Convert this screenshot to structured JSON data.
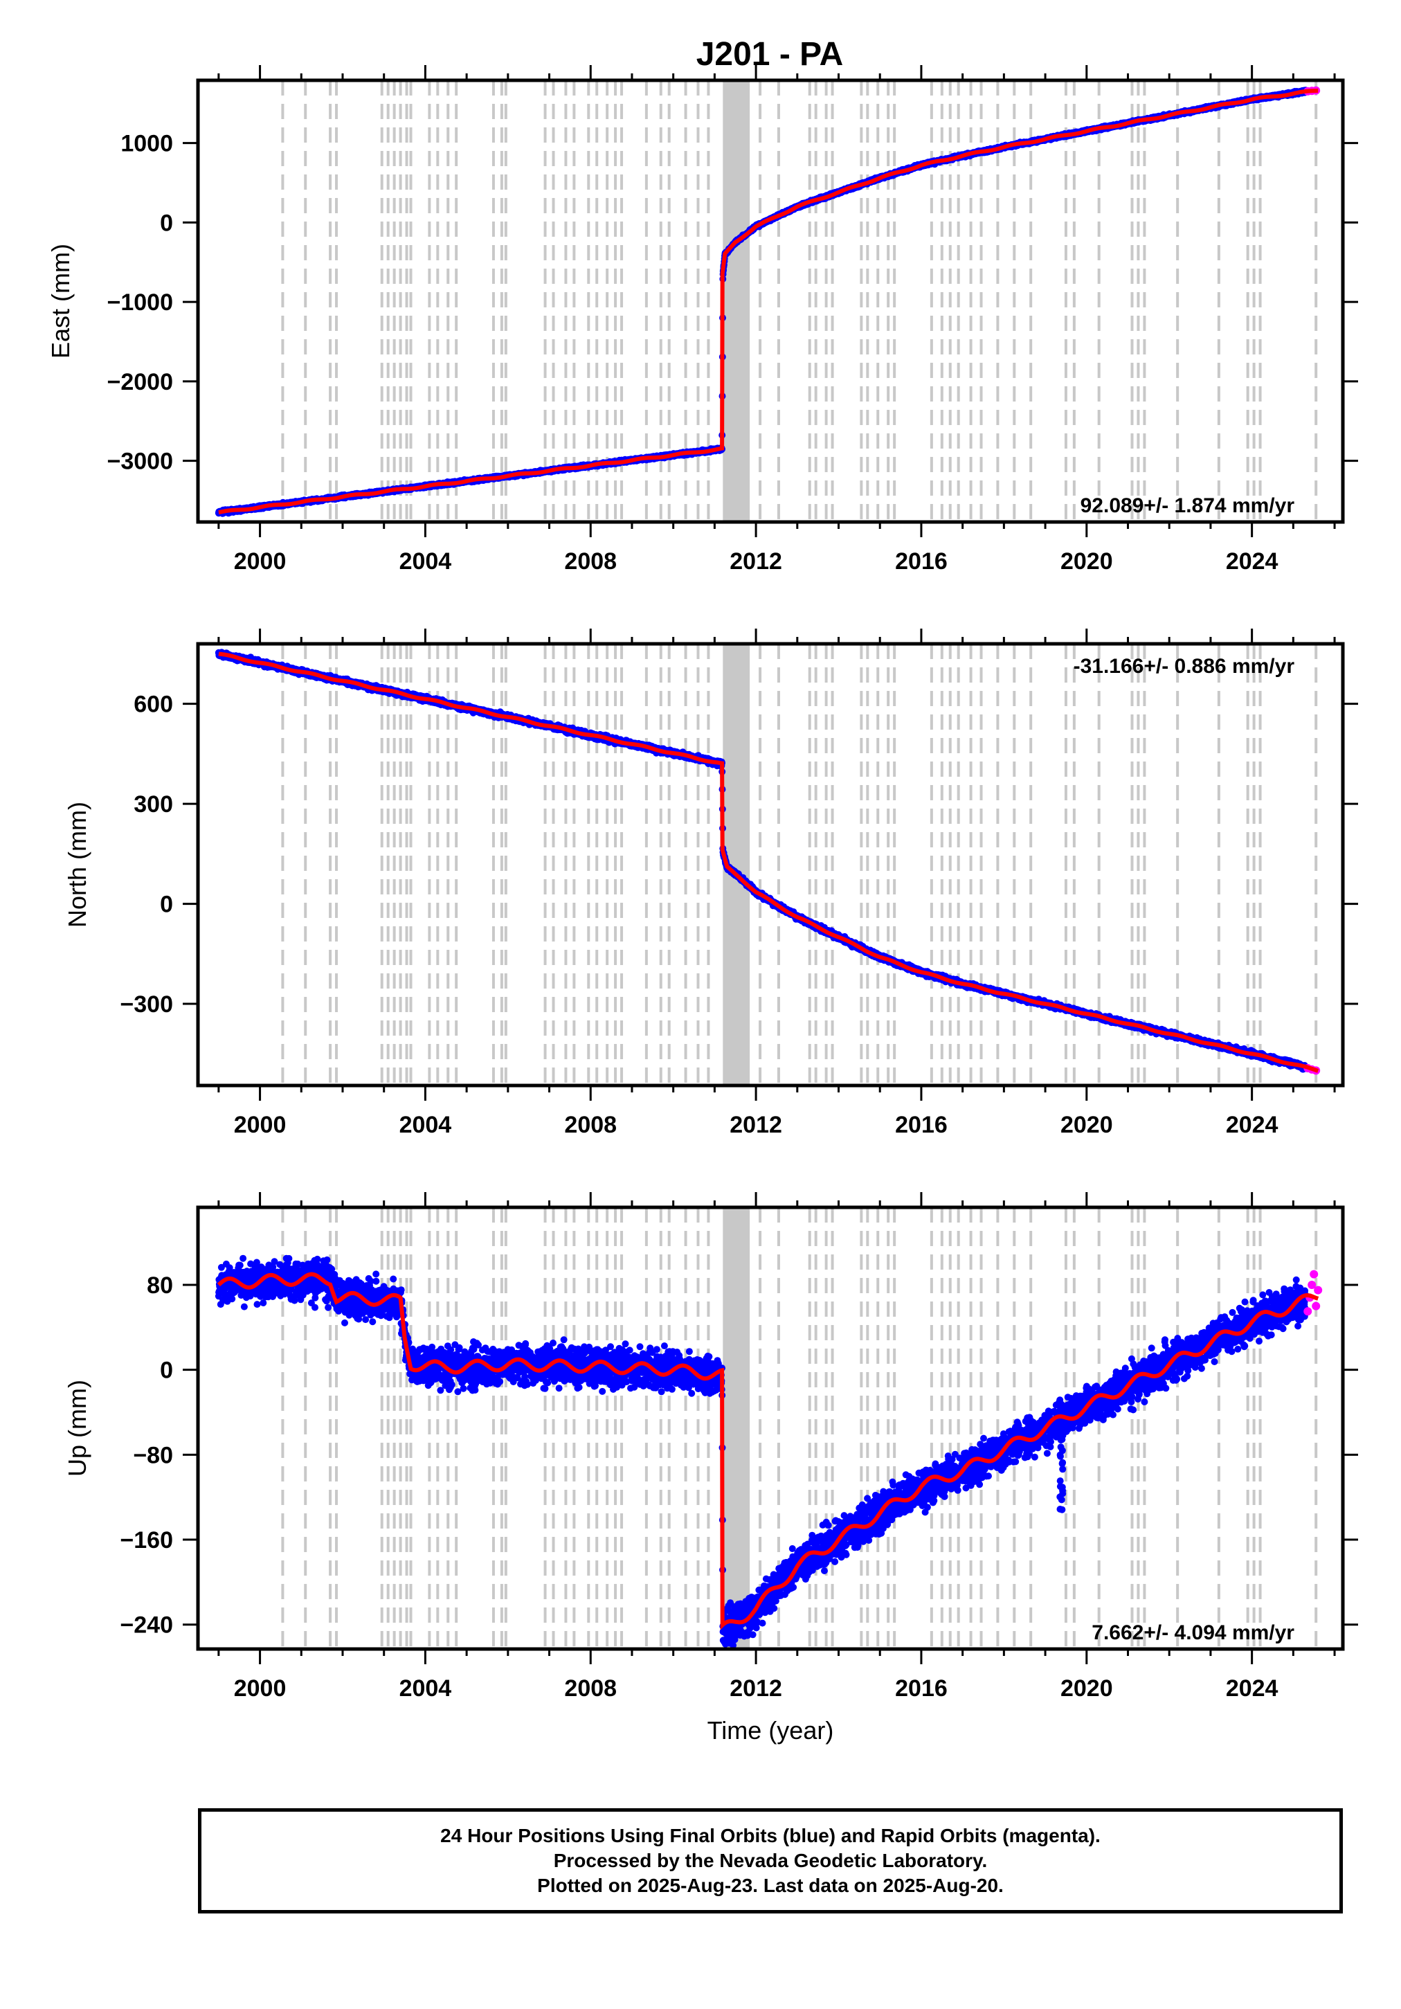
{
  "title": "J201 - PA",
  "colors": {
    "final": "#0000ff",
    "rapid": "#ff00ff",
    "model": "#ff0000",
    "event_lines": "#c8c8c8",
    "frame": "#000000"
  },
  "events": [
    2000.55,
    2001.1,
    2001.7,
    2001.85,
    2002.95,
    2003.1,
    2003.25,
    2003.4,
    2003.55,
    2003.65,
    2004.1,
    2004.3,
    2004.55,
    2004.75,
    2005.65,
    2005.85,
    2005.95,
    2006.9,
    2007.1,
    2007.4,
    2007.6,
    2007.95,
    2008.15,
    2008.4,
    2008.6,
    2008.75,
    2009.35,
    2009.7,
    2009.9,
    2010.3,
    2010.6,
    2010.85,
    2011.75,
    2012.1,
    2012.55,
    2013.3,
    2013.45,
    2013.7,
    2013.85,
    2014.55,
    2014.7,
    2014.95,
    2015.2,
    2015.35,
    2016.25,
    2016.5,
    2016.7,
    2016.9,
    2017.2,
    2017.45,
    2017.85,
    2018.25,
    2018.65,
    2019.5,
    2019.7,
    2020.3,
    2021.1,
    2021.25,
    2021.4,
    2022.2,
    2023.2,
    2023.9,
    2024.05,
    2024.2,
    2025.55
  ],
  "event_band": [
    2011.2,
    2011.85
  ],
  "legend_box": {
    "line1": "24 Hour Positions Using Final Orbits (blue) and Rapid Orbits (magenta).",
    "line2": "Processed by the Nevada Geodetic Laboratory.",
    "line3": "Plotted on 2025-Aug-23. Last data on 2025-Aug-20."
  },
  "chart_data": [
    {
      "type": "scatter",
      "component": "east",
      "ylabel": "East (mm)",
      "xlabel": "",
      "xlim": [
        1998.5,
        2026.2
      ],
      "ylim": [
        -3770,
        1790
      ],
      "xticks": [
        2000,
        2004,
        2008,
        2012,
        2016,
        2020,
        2024
      ],
      "yticks": [
        1000,
        0,
        -1000,
        -2000,
        -3000
      ],
      "ytick_labels": [
        "1000",
        "0",
        "−1000",
        "−2000",
        "−3000"
      ],
      "rate_annotation": "92.089+/- 1.874 mm/yr",
      "annotation_position": "bottom-right",
      "series": [
        {
          "name": "Final Orbits",
          "color": "#0000ff",
          "noise": 12,
          "x": [
            1999.0,
            2011.18,
            2011.2,
            2011.25,
            2011.5,
            2012.0,
            2013.0,
            2014.0,
            2015.0,
            2016.0,
            2017.0,
            2018.0,
            2019.0,
            2020.0,
            2021.0,
            2022.0,
            2023.0,
            2024.0,
            2025.3
          ],
          "y": [
            -3650,
            -2850,
            -650,
            -400,
            -250,
            -50,
            200,
            380,
            560,
            720,
            840,
            950,
            1050,
            1150,
            1250,
            1350,
            1450,
            1550,
            1650
          ]
        },
        {
          "name": "Rapid Orbits",
          "color": "#ff00ff",
          "x": [
            2025.35,
            2025.45,
            2025.55
          ],
          "y": [
            1652,
            1657,
            1662
          ]
        }
      ],
      "model": {
        "color": "#ff0000",
        "x": [
          1999.0,
          2011.18,
          2011.19,
          2011.25,
          2011.5,
          2012.0,
          2013.0,
          2014.0,
          2015.0,
          2016.0,
          2017.0,
          2018.0,
          2019.0,
          2020.0,
          2021.0,
          2022.0,
          2023.0,
          2024.0,
          2025.6
        ],
        "y": [
          -3650,
          -2850,
          -650,
          -400,
          -250,
          -50,
          200,
          380,
          560,
          720,
          840,
          950,
          1050,
          1150,
          1250,
          1350,
          1450,
          1550,
          1665
        ]
      }
    },
    {
      "type": "scatter",
      "component": "north",
      "ylabel": "North (mm)",
      "xlabel": "",
      "xlim": [
        1998.5,
        2026.2
      ],
      "ylim": [
        -545,
        780
      ],
      "xticks": [
        2000,
        2004,
        2008,
        2012,
        2016,
        2020,
        2024
      ],
      "yticks": [
        600,
        300,
        0,
        -300
      ],
      "ytick_labels": [
        "600",
        "300",
        "0",
        "−300"
      ],
      "rate_annotation": "-31.166+/- 0.886 mm/yr",
      "annotation_position": "top-right",
      "series": [
        {
          "name": "Final Orbits",
          "color": "#0000ff",
          "noise": 5,
          "x": [
            1999.0,
            2011.18,
            2011.2,
            2011.3,
            2011.6,
            2012.0,
            2013.0,
            2014.0,
            2015.0,
            2016.0,
            2017.0,
            2018.0,
            2019.0,
            2020.0,
            2021.0,
            2022.0,
            2023.0,
            2024.0,
            2025.3
          ],
          "y": [
            750,
            420,
            160,
            110,
            80,
            35,
            -40,
            -100,
            -160,
            -205,
            -240,
            -270,
            -300,
            -330,
            -360,
            -390,
            -420,
            -450,
            -490
          ]
        },
        {
          "name": "Rapid Orbits",
          "color": "#ff00ff",
          "x": [
            2025.35,
            2025.45,
            2025.55
          ],
          "y": [
            -493,
            -497,
            -500
          ]
        }
      ],
      "model": {
        "color": "#ff0000",
        "x": [
          1999.0,
          2011.18,
          2011.19,
          2011.3,
          2011.6,
          2012.0,
          2013.0,
          2014.0,
          2015.0,
          2016.0,
          2017.0,
          2018.0,
          2019.0,
          2020.0,
          2021.0,
          2022.0,
          2023.0,
          2024.0,
          2025.6
        ],
        "y": [
          750,
          420,
          160,
          110,
          80,
          35,
          -40,
          -100,
          -160,
          -205,
          -240,
          -270,
          -300,
          -330,
          -360,
          -390,
          -420,
          -450,
          -500
        ]
      }
    },
    {
      "type": "scatter",
      "component": "up",
      "ylabel": "Up (mm)",
      "xlabel": "Time (year)",
      "xlim": [
        1998.5,
        2026.2
      ],
      "ylim": [
        -263,
        153
      ],
      "xticks": [
        2000,
        2004,
        2008,
        2012,
        2016,
        2020,
        2024
      ],
      "yticks": [
        80,
        0,
        -80,
        -160,
        -240
      ],
      "ytick_labels": [
        "80",
        "0",
        "−80",
        "−160",
        "−240"
      ],
      "rate_annotation": "7.662+/- 4.094 mm/yr",
      "annotation_position": "bottom-right",
      "series": [
        {
          "name": "Final Orbits",
          "color": "#0000ff",
          "noise": 12,
          "x": [
            1999.0,
            2000.5,
            2001.7,
            2001.85,
            2003.4,
            2003.5,
            2003.65,
            2004.5,
            2006.0,
            2008.0,
            2010.0,
            2011.18,
            2011.2,
            2012.0,
            2013.0,
            2014.0,
            2015.0,
            2016.0,
            2017.0,
            2018.0,
            2019.0,
            2020.0,
            2021.0,
            2022.0,
            2023.0,
            2024.0,
            2025.3
          ],
          "y": [
            80,
            85,
            85,
            68,
            65,
            30,
            5,
            2,
            5,
            3,
            0,
            -5,
            -245,
            -225,
            -185,
            -160,
            -135,
            -110,
            -95,
            -75,
            -55,
            -35,
            -15,
            5,
            25,
            45,
            65
          ]
        },
        {
          "name": "Rapid Orbits",
          "color": "#ff00ff",
          "x": [
            2025.35,
            2025.4,
            2025.45,
            2025.5,
            2025.55,
            2025.6
          ],
          "y": [
            55,
            68,
            80,
            90,
            60,
            75
          ]
        }
      ],
      "model": {
        "color": "#ff0000",
        "x": [
          1999.0,
          2000.5,
          2001.7,
          2001.85,
          2003.4,
          2003.5,
          2003.65,
          2004.5,
          2006.0,
          2008.0,
          2010.0,
          2011.18,
          2011.19,
          2012.0,
          2013.0,
          2014.0,
          2015.0,
          2016.0,
          2017.0,
          2018.0,
          2019.0,
          2020.0,
          2021.0,
          2022.0,
          2023.0,
          2024.0,
          2025.6
        ],
        "y": [
          80,
          85,
          85,
          68,
          65,
          30,
          5,
          2,
          5,
          3,
          0,
          -5,
          -245,
          -225,
          -185,
          -160,
          -135,
          -110,
          -95,
          -75,
          -55,
          -35,
          -15,
          5,
          25,
          45,
          70
        ]
      }
    }
  ]
}
